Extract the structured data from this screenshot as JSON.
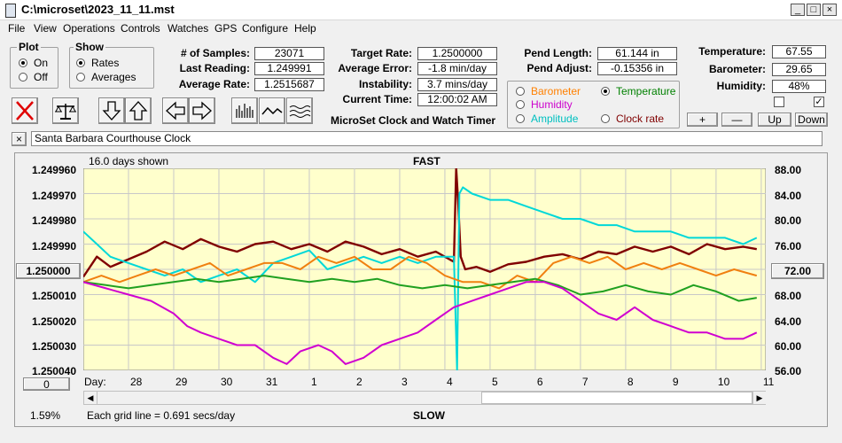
{
  "window": {
    "title": "C:\\microset\\2023_11_11.mst",
    "min": "_",
    "max": "□",
    "close": "×"
  },
  "menu": [
    "File",
    "View",
    "Operations",
    "Controls",
    "Watches",
    "GPS",
    "Configure",
    "Help"
  ],
  "plot_group": {
    "title": "Plot",
    "options": [
      {
        "label": "On",
        "selected": true
      },
      {
        "label": "Off",
        "selected": false
      }
    ]
  },
  "show_group": {
    "title": "Show",
    "options": [
      {
        "label": "Rates",
        "selected": true
      },
      {
        "label": "Averages",
        "selected": false
      }
    ]
  },
  "stats": {
    "samples_label": "# of Samples:",
    "samples": "23071",
    "last_reading_label": "Last Reading:",
    "last_reading": "1.249991",
    "average_rate_label": "Average Rate:",
    "average_rate": "1.2515687",
    "target_rate_label": "Target Rate:",
    "target_rate": "1.2500000",
    "average_error_label": "Average Error:",
    "average_error": "-1.8 min/day",
    "instability_label": "Instability:",
    "instability": "3.7 mins/day",
    "current_time_label": "Current Time:",
    "current_time": "12:00:02 AM",
    "pend_length_label": "Pend Length:",
    "pend_length": "61.144 in",
    "pend_adjust_label": "Pend Adjust:",
    "pend_adjust": "-0.15356 in",
    "temperature_label": "Temperature:",
    "temperature": "67.55",
    "barometer_label": "Barometer:",
    "barometer": "29.65",
    "humidity_label": "Humidity:",
    "humidity": "48%"
  },
  "app_name": "MicroSet Clock and Watch Timer",
  "sensor_select": {
    "barometer": {
      "label": "Barometer",
      "color": "#ff8000",
      "selected": false
    },
    "temperature": {
      "label": "Temperature",
      "color": "#008000",
      "selected": true
    },
    "humidity": {
      "label": "Humidity",
      "color": "#cc00cc",
      "selected": false
    },
    "amplitude": {
      "label": "Amplitude",
      "color": "#00c0c0",
      "selected": false
    },
    "clock_rate": {
      "label": "Clock rate",
      "color": "#800000",
      "selected": false
    }
  },
  "adjust_buttons": {
    "plus": "+",
    "minus": "—",
    "up": "Up",
    "down": "Down"
  },
  "checkboxes": [
    {
      "checked": false
    },
    {
      "checked": true
    }
  ],
  "watch_name": "Santa Barbara Courthouse Clock",
  "clear_name_button": "×",
  "chart_header": {
    "days_shown": "16.0 days shown",
    "fast": "FAST",
    "slow": "SLOW"
  },
  "left_value_button": "1.250000",
  "right_value_button": "72.00",
  "scroll_value_button": "0",
  "percent": "1.59%",
  "grid_note": "Each grid line = 0.691 secs/day",
  "day_axis_label": "Day:",
  "chart_data": {
    "type": "line",
    "x_unit": "day",
    "x_ticks": [
      "28",
      "29",
      "30",
      "31",
      "1",
      "2",
      "3",
      "4",
      "5",
      "6",
      "7",
      "8",
      "9",
      "10",
      "11"
    ],
    "left_axis": {
      "labels": [
        "1.249960",
        "1.249970",
        "1.249980",
        "1.249990",
        "1.250000",
        "1.250010",
        "1.250020",
        "1.250030",
        "1.250040"
      ],
      "ylim": [
        1.24996,
        1.25004
      ],
      "inverted": true
    },
    "right_axis": {
      "labels": [
        "88.00",
        "84.00",
        "80.00",
        "76.00",
        "72.00",
        "68.00",
        "64.00",
        "60.00",
        "56.00"
      ],
      "ylim": [
        56,
        88
      ]
    },
    "series": [
      {
        "key": "clock_rate",
        "color": "#800000",
        "x": [
          27.0,
          27.3,
          27.6,
          28.0,
          28.4,
          28.8,
          29.2,
          29.6,
          30.0,
          30.4,
          30.8,
          31.2,
          31.6,
          32.0,
          32.4,
          32.8,
          33.2,
          33.6,
          34.0,
          34.4,
          34.8,
          35.2,
          35.25,
          35.3,
          35.35,
          35.45,
          35.7,
          36.0,
          36.4,
          36.8,
          37.2,
          37.6,
          38.0,
          38.4,
          38.8,
          39.2,
          39.6,
          40.0,
          40.4,
          40.8,
          41.2,
          41.6,
          41.9
        ],
        "y": [
          1.250003,
          1.249995,
          1.249999,
          1.249996,
          1.249993,
          1.249989,
          1.249992,
          1.249988,
          1.249991,
          1.249993,
          1.24999,
          1.249989,
          1.249992,
          1.24999,
          1.249993,
          1.249989,
          1.249991,
          1.249994,
          1.249992,
          1.249995,
          1.249993,
          1.249997,
          1.24996,
          1.249975,
          1.249995,
          1.25,
          1.249999,
          1.250001,
          1.249998,
          1.249997,
          1.249995,
          1.249994,
          1.249996,
          1.249993,
          1.249994,
          1.249991,
          1.249993,
          1.249991,
          1.249994,
          1.24999,
          1.249992,
          1.249991,
          1.249992
        ]
      },
      {
        "key": "amplitude",
        "color": "#00d8d8",
        "x": [
          27.0,
          27.3,
          27.6,
          28.0,
          28.4,
          28.8,
          29.2,
          29.6,
          30.0,
          30.4,
          30.8,
          31.2,
          31.6,
          32.0,
          32.4,
          32.8,
          33.2,
          33.6,
          34.0,
          34.4,
          34.8,
          35.2,
          35.27,
          35.32,
          35.4,
          35.6,
          36.0,
          36.4,
          36.8,
          37.2,
          37.6,
          38.0,
          38.4,
          38.8,
          39.2,
          39.6,
          40.0,
          40.4,
          40.8,
          41.2,
          41.6,
          41.9
        ],
        "y": [
          78,
          76,
          74,
          73,
          72,
          71,
          72,
          70,
          71,
          72,
          70,
          73,
          74,
          75,
          72,
          73,
          74,
          73,
          74,
          73,
          74,
          74,
          56,
          84,
          85,
          84,
          83,
          83,
          82,
          81,
          80,
          80,
          79,
          79,
          78,
          78,
          78,
          77,
          77,
          77,
          76,
          77
        ]
      },
      {
        "key": "barometer",
        "color": "#f08010",
        "x": [
          27.0,
          27.4,
          27.8,
          28.2,
          28.6,
          29.0,
          29.4,
          29.8,
          30.2,
          30.6,
          31.0,
          31.4,
          31.8,
          32.2,
          32.6,
          33.0,
          33.4,
          33.8,
          34.2,
          34.6,
          35.0,
          35.4,
          35.8,
          36.2,
          36.6,
          37.0,
          37.4,
          37.8,
          38.2,
          38.6,
          39.0,
          39.4,
          39.8,
          40.2,
          40.6,
          41.0,
          41.4,
          41.9
        ],
        "y": [
          70,
          71,
          70,
          71,
          72,
          71,
          72,
          73,
          71,
          72,
          73,
          73,
          72,
          74,
          73,
          74,
          72,
          72,
          74,
          73,
          71,
          70,
          70,
          69,
          71,
          70,
          73,
          74,
          73,
          74,
          72,
          73,
          72,
          73,
          72,
          71,
          72,
          71
        ]
      },
      {
        "key": "temperature",
        "color": "#20a020",
        "x": [
          27.0,
          27.5,
          28.0,
          28.5,
          29.0,
          29.5,
          30.0,
          30.5,
          31.0,
          31.5,
          32.0,
          32.5,
          33.0,
          33.5,
          34.0,
          34.5,
          35.0,
          35.5,
          36.0,
          36.5,
          37.0,
          37.5,
          38.0,
          38.5,
          39.0,
          39.5,
          40.0,
          40.5,
          41.0,
          41.5,
          41.9
        ],
        "y": [
          70,
          69.5,
          69,
          69.5,
          70,
          70.5,
          70,
          70.5,
          71,
          70.5,
          70,
          70.5,
          70,
          70.5,
          69.5,
          69,
          69.5,
          69,
          69.5,
          70,
          70.5,
          69.5,
          68,
          68.5,
          69.5,
          68.5,
          68,
          69.5,
          68.5,
          67,
          67.5
        ]
      },
      {
        "key": "humidity",
        "color": "#d000d0",
        "x": [
          27.0,
          27.5,
          28.0,
          28.5,
          29.0,
          29.3,
          29.6,
          30.0,
          30.4,
          30.8,
          31.2,
          31.5,
          31.8,
          32.2,
          32.5,
          32.8,
          33.2,
          33.6,
          34.0,
          34.4,
          34.8,
          35.2,
          35.6,
          36.0,
          36.4,
          36.8,
          37.2,
          37.6,
          38.0,
          38.4,
          38.8,
          39.2,
          39.6,
          40.0,
          40.4,
          40.8,
          41.2,
          41.6,
          41.9
        ],
        "y": [
          70,
          69,
          68,
          67,
          65,
          63,
          62,
          61,
          60,
          60,
          58,
          57,
          59,
          60,
          59,
          57,
          58,
          60,
          61,
          62,
          64,
          66,
          67,
          68,
          69,
          70,
          70,
          69,
          67,
          65,
          64,
          66,
          64,
          63,
          62,
          62,
          61,
          61,
          62
        ]
      }
    ]
  }
}
